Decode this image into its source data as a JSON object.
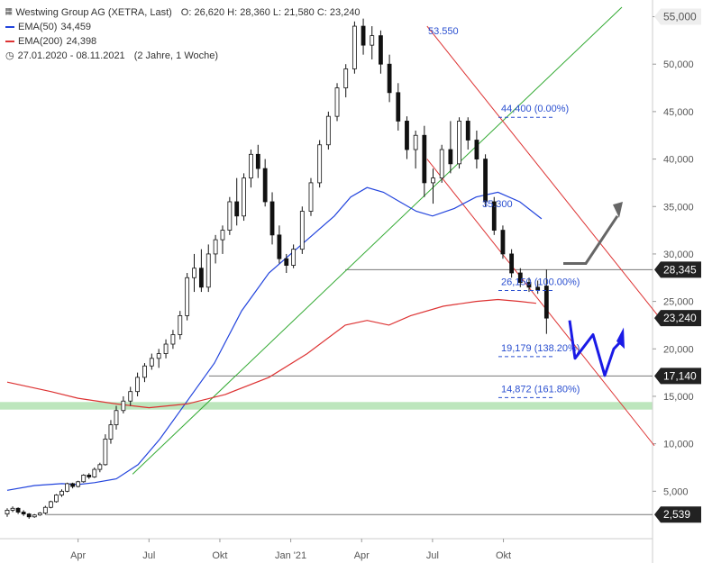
{
  "header": {
    "title": "Westwing Group AG (XETRA, Last)",
    "ohlc": "O: 26,620  H: 28,360  L: 21,580  C: 23,240",
    "ema50_label": "EMA(50)",
    "ema50_value": "34,459",
    "ema200_label": "EMA(200)",
    "ema200_value": "24,398",
    "range": "27.01.2020 - 08.11.2021",
    "duration": "(2 Jahre, 1 Woche)"
  },
  "colors": {
    "ema50": "#2244dd",
    "ema200": "#dd3333",
    "trend_green": "#33aa33",
    "channel_red": "#dd3333",
    "projection_blue": "#1a1ae6",
    "projection_gray": "#666666",
    "support_zone": "#bde6bd",
    "badge_dark": "#222222",
    "fib_text": "#2a4fd0"
  },
  "chart_data": {
    "type": "line",
    "y_axis": {
      "range": [
        0,
        56000
      ],
      "ticks": [
        "5,000",
        "10,000",
        "15,000",
        "20,000",
        "25,000",
        "30,000",
        "35,000",
        "40,000",
        "45,000",
        "50,000",
        "55,000"
      ],
      "tick_values": [
        5000,
        10000,
        15000,
        20000,
        25000,
        30000,
        35000,
        40000,
        45000,
        50000,
        55000
      ],
      "position": "right"
    },
    "x_axis": {
      "ticks": [
        "Apr",
        "Jul",
        "Okt",
        "Jan '21",
        "Apr",
        "Jul",
        "Okt"
      ],
      "tick_index": [
        13,
        26,
        39,
        52,
        65,
        78,
        91
      ]
    },
    "price_badges": [
      {
        "label": "55,000",
        "value": 55000,
        "style": "gray"
      },
      {
        "label": "28,345",
        "value": 28345,
        "style": "dark"
      },
      {
        "label": "23,240",
        "value": 23240,
        "style": "dark"
      },
      {
        "label": "17,140",
        "value": 17140,
        "style": "dark"
      },
      {
        "label": "2,539",
        "value": 2539,
        "style": "dark"
      }
    ],
    "annotations": [
      {
        "text": "53.550",
        "i": 95,
        "value": 53550
      },
      {
        "text": "44,400 (0.00%)",
        "value": 44400
      },
      {
        "text": "35.300",
        "value": 35300
      },
      {
        "text": "26,150 (100.00%)",
        "value": 26150
      },
      {
        "text": "19,179 (138.20%)",
        "value": 19179
      },
      {
        "text": "14,872 (161.80%)",
        "value": 14872
      }
    ],
    "horizontal_levels": [
      28345,
      17140,
      2539
    ],
    "support_zone": [
      13600,
      14400
    ],
    "series": [
      {
        "name": "EMA(50)",
        "points": [
          [
            0,
            5100
          ],
          [
            5,
            5600
          ],
          [
            10,
            5800
          ],
          [
            13,
            5700
          ],
          [
            16,
            5900
          ],
          [
            20,
            6300
          ],
          [
            24,
            7800
          ],
          [
            28,
            10500
          ],
          [
            33,
            14500
          ],
          [
            38,
            18500
          ],
          [
            43,
            24000
          ],
          [
            48,
            28000
          ],
          [
            52,
            30000
          ],
          [
            56,
            32000
          ],
          [
            60,
            34000
          ],
          [
            63,
            36000
          ],
          [
            66,
            37000
          ],
          [
            69,
            36500
          ],
          [
            72,
            35500
          ],
          [
            75,
            34500
          ],
          [
            78,
            34000
          ],
          [
            82,
            34800
          ],
          [
            86,
            36000
          ],
          [
            90,
            36500
          ],
          [
            94,
            35500
          ],
          [
            98,
            33700
          ]
        ]
      },
      {
        "name": "EMA(200)",
        "points": [
          [
            0,
            16500
          ],
          [
            8,
            15500
          ],
          [
            13,
            14800
          ],
          [
            20,
            14200
          ],
          [
            26,
            13800
          ],
          [
            33,
            14200
          ],
          [
            40,
            15200
          ],
          [
            48,
            17000
          ],
          [
            55,
            19500
          ],
          [
            62,
            22500
          ],
          [
            66,
            23000
          ],
          [
            70,
            22500
          ],
          [
            74,
            23500
          ],
          [
            80,
            24500
          ],
          [
            86,
            25000
          ],
          [
            90,
            25200
          ],
          [
            94,
            25000
          ],
          [
            97,
            24800
          ]
        ]
      }
    ],
    "candles": [
      [
        2600,
        3200,
        2300,
        3000
      ],
      [
        3000,
        3400,
        2800,
        3200
      ],
      [
        3200,
        3300,
        2600,
        2800
      ],
      [
        2800,
        3000,
        2400,
        2600
      ],
      [
        2600,
        2700,
        2100,
        2300
      ],
      [
        2300,
        2600,
        2200,
        2500
      ],
      [
        2500,
        2800,
        2400,
        2700
      ],
      [
        2700,
        3400,
        2600,
        3300
      ],
      [
        3300,
        4000,
        3200,
        3900
      ],
      [
        3900,
        4700,
        3800,
        4600
      ],
      [
        4600,
        5200,
        4400,
        5000
      ],
      [
        5000,
        5900,
        4900,
        5800
      ],
      [
        5800,
        5900,
        5300,
        5500
      ],
      [
        5500,
        6100,
        5400,
        6000
      ],
      [
        6000,
        6800,
        5900,
        6700
      ],
      [
        6700,
        6900,
        6300,
        6500
      ],
      [
        6500,
        7500,
        6400,
        7300
      ],
      [
        7300,
        8000,
        7000,
        7800
      ],
      [
        7800,
        11000,
        7700,
        10500
      ],
      [
        10500,
        12500,
        10000,
        12000
      ],
      [
        12000,
        14000,
        11500,
        13500
      ],
      [
        13500,
        15000,
        13200,
        14500
      ],
      [
        14500,
        16000,
        14000,
        15500
      ],
      [
        15500,
        17500,
        15000,
        17000
      ],
      [
        17000,
        18500,
        16500,
        18200
      ],
      [
        18200,
        19500,
        17800,
        19000
      ],
      [
        19000,
        20000,
        18000,
        19500
      ],
      [
        19500,
        21000,
        19000,
        20500
      ],
      [
        20500,
        22000,
        20000,
        21500
      ],
      [
        21500,
        24000,
        21000,
        23500
      ],
      [
        23500,
        28000,
        23000,
        27500
      ],
      [
        27500,
        30000,
        26000,
        28500
      ],
      [
        28500,
        30500,
        26000,
        26500
      ],
      [
        26500,
        31000,
        26000,
        30000
      ],
      [
        30000,
        32000,
        29000,
        31500
      ],
      [
        31500,
        33000,
        30000,
        32500
      ],
      [
        32500,
        36000,
        32000,
        35500
      ],
      [
        35500,
        38000,
        33000,
        34000
      ],
      [
        34000,
        38500,
        33500,
        38000
      ],
      [
        38000,
        41000,
        37000,
        40500
      ],
      [
        40500,
        41500,
        38000,
        39000
      ],
      [
        39000,
        40000,
        35000,
        35500
      ],
      [
        35500,
        36500,
        31000,
        32000
      ],
      [
        32000,
        33000,
        29000,
        29500
      ],
      [
        29500,
        30000,
        28000,
        28800
      ],
      [
        28800,
        31000,
        28500,
        30500
      ],
      [
        30500,
        35000,
        30000,
        34500
      ],
      [
        34500,
        38000,
        34000,
        37500
      ],
      [
        37500,
        42000,
        37000,
        41500
      ],
      [
        41500,
        45000,
        41000,
        44500
      ],
      [
        44500,
        48000,
        44000,
        47500
      ],
      [
        47500,
        50000,
        46500,
        49500
      ],
      [
        49500,
        54500,
        49000,
        54000
      ],
      [
        54000,
        54800,
        51000,
        52000
      ],
      [
        52000,
        54000,
        50500,
        53000
      ],
      [
        53000,
        53550,
        49000,
        50000
      ],
      [
        50000,
        51000,
        46000,
        47000
      ],
      [
        47000,
        48000,
        43000,
        44000
      ],
      [
        44000,
        44500,
        40000,
        41000
      ],
      [
        41000,
        43000,
        39000,
        42500
      ],
      [
        42500,
        43500,
        36000,
        37500
      ],
      [
        37500,
        39000,
        35300,
        38000
      ],
      [
        38000,
        41500,
        37500,
        41000
      ],
      [
        41000,
        44000,
        38500,
        39500
      ],
      [
        39500,
        44400,
        39000,
        44000
      ],
      [
        44000,
        44400,
        41000,
        42000
      ],
      [
        42000,
        43000,
        39000,
        40000
      ],
      [
        40000,
        40500,
        35000,
        35500
      ],
      [
        35500,
        36000,
        32000,
        32500
      ],
      [
        32500,
        33000,
        29500,
        30000
      ],
      [
        30000,
        30500,
        27500,
        28000
      ],
      [
        28000,
        28500,
        26500,
        27000
      ],
      [
        27000,
        27500,
        26000,
        26500
      ],
      [
        26500,
        27200,
        25800,
        26200
      ],
      [
        26620,
        28360,
        21580,
        23240
      ]
    ],
    "projection_blue": [
      [
        23000,
        23000
      ],
      [
        21500,
        19000
      ],
      [
        23000,
        21500
      ],
      [
        20000,
        17200
      ],
      [
        20000,
        20000
      ],
      [
        17200,
        21000
      ]
    ],
    "projection_gray": [
      [
        29000,
        29000
      ],
      [
        29000,
        34500
      ]
    ]
  }
}
